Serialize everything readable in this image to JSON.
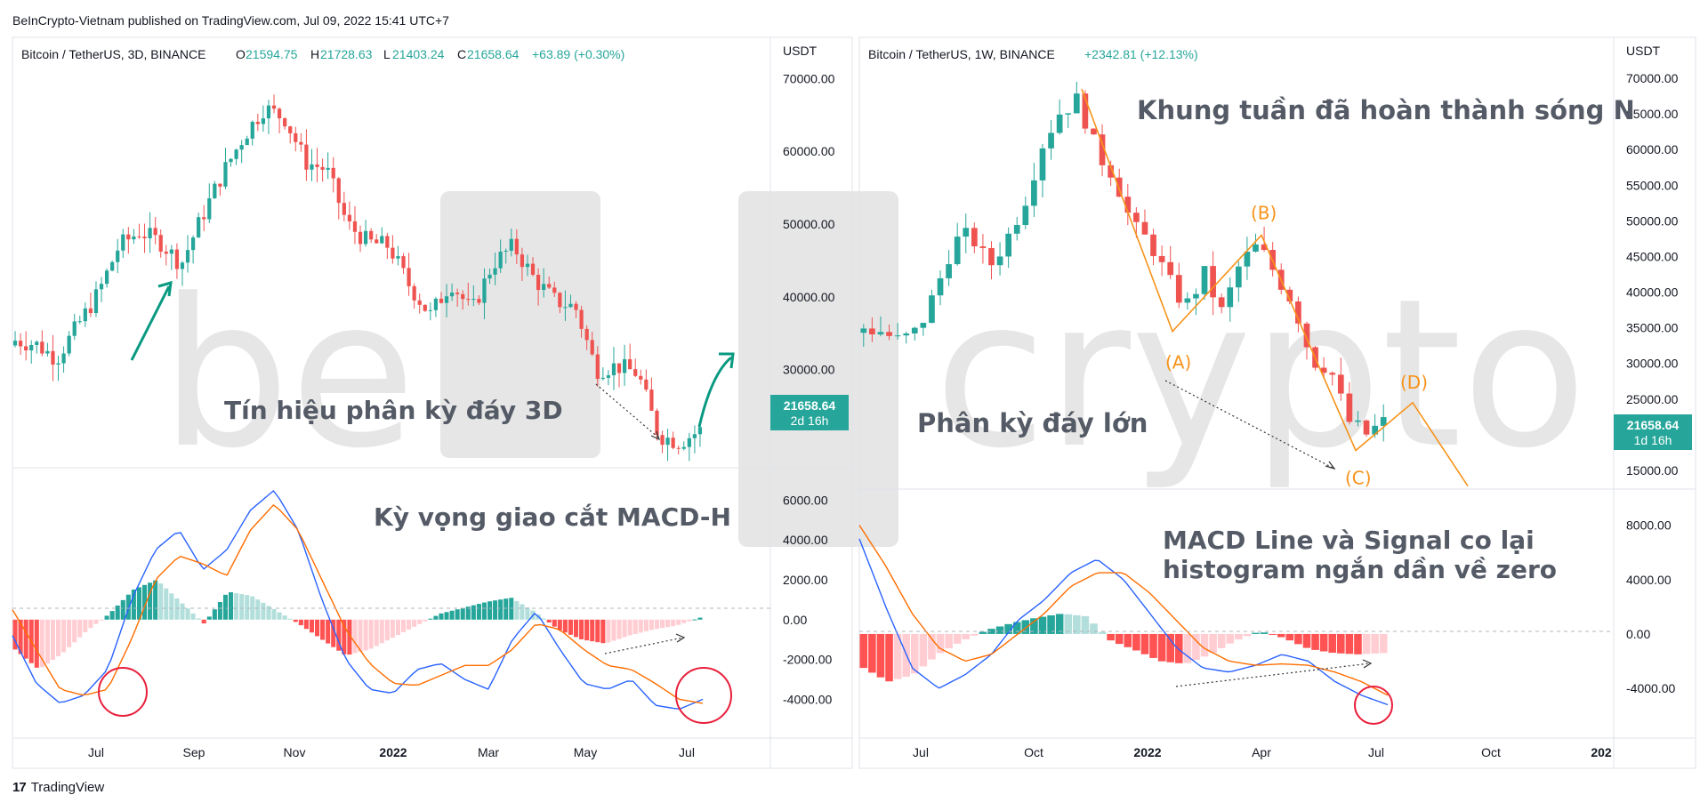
{
  "header": {
    "published": "BeInCrypto-Vietnam published on TradingView.com, Jul 09, 2022 15:41 UTC+7",
    "footer_brand": "TradingView",
    "footer_logo": "17"
  },
  "colors": {
    "up": "#26a69a",
    "down": "#ef5350",
    "hist_up_strong": "#26a69a",
    "hist_up_weak": "#b2dfdb",
    "hist_down_strong": "#ff5252",
    "hist_down_weak": "#ffcdd2",
    "macd_line": "#2962ff",
    "signal_line": "#ff6d00",
    "wave": "#f7931a",
    "annotation_green": "#089981",
    "circle": "#e91e3a",
    "price_label_bg": "#26a69a",
    "watermark": "#e8e8e8"
  },
  "watermark": {
    "left": "be",
    "right": "crypto"
  },
  "left_chart": {
    "title": "Bitcoin / TetherUS, 3D, BINANCE",
    "ohlc": {
      "o_label": "O",
      "o": "21594.75",
      "h_label": "H",
      "h": "21728.63",
      "l_label": "L",
      "l": "21403.24",
      "c_label": "C",
      "c": "21658.64",
      "change": "+63.89 (+0.30%)"
    },
    "currency": "USDT",
    "price_ticks": [
      "70000.00",
      "60000.00",
      "50000.00",
      "40000.00",
      "30000.00"
    ],
    "last_price": "21658.64",
    "countdown": "2d 16h",
    "macd_ticks": [
      "6000.00",
      "4000.00",
      "2000.00",
      "0.00",
      "-2000.00",
      "-4000.00"
    ],
    "time_labels": [
      "Jul",
      "Sep",
      "Nov",
      "2022",
      "Mar",
      "May",
      "Jul"
    ],
    "notes": {
      "price_note": "Tín hiệu phân kỳ đáy 3D",
      "macd_note": "Kỳ vọng giao cắt MACD-H"
    }
  },
  "right_chart": {
    "title": "Bitcoin / TetherUS, 1W, BINANCE",
    "change": "+2342.81 (+12.13%)",
    "currency": "USDT",
    "price_ticks": [
      "70000.00",
      "65000.00",
      "60000.00",
      "55000.00",
      "50000.00",
      "45000.00",
      "40000.00",
      "35000.00",
      "30000.00",
      "25000.00",
      "15000.00"
    ],
    "last_price": "21658.64",
    "countdown": "1d 16h",
    "macd_ticks": [
      "8000.00",
      "4000.00",
      "0.00",
      "-4000.00"
    ],
    "time_labels": [
      "Jul",
      "Oct",
      "2022",
      "Apr",
      "Jul",
      "Oct",
      "202"
    ],
    "wave_labels": [
      "(A)",
      "(B)",
      "(C)",
      "(D)"
    ],
    "notes": {
      "title_note": "Khung tuần đã hoàn thành sóng N",
      "price_note": "Phân kỳ đáy lớn",
      "macd_note_1": "MACD Line và Signal co lại",
      "macd_note_2": "histogram ngắn dần về zero"
    }
  },
  "chart_data": [
    {
      "type": "candlestick",
      "title": "Bitcoin / TetherUS, 3D, BINANCE",
      "period": "Jun 2021 – Jul 2022",
      "x": [
        "Jul",
        "Sep",
        "Nov",
        "2022",
        "Mar",
        "May",
        "Jul"
      ],
      "close_path": [
        34000,
        33500,
        31500,
        36000,
        40500,
        47000,
        49000,
        47500,
        44500,
        51000,
        57000,
        62000,
        66000,
        64500,
        58500,
        57500,
        50000,
        47500,
        47000,
        41500,
        37500,
        42000,
        38000,
        44500,
        47000,
        42500,
        39500,
        38500,
        30000,
        30500,
        29500,
        21000,
        20000,
        21658.64
      ],
      "ylim": [
        17000,
        72000
      ],
      "macd": {
        "ylim": [
          -5500,
          7000
        ],
        "macd_line": [
          -800,
          -3200,
          -4200,
          -3800,
          -2500,
          1000,
          3500,
          4500,
          2500,
          3500,
          5500,
          6500,
          4500,
          1000,
          -2000,
          -3500,
          -3700,
          -2500,
          -2200,
          -3000,
          -3500,
          -1000,
          400,
          -1500,
          -3200,
          -3500,
          -3000,
          -4300,
          -4500,
          -4000
        ],
        "signal_line": [
          500,
          -1500,
          -3500,
          -3800,
          -3500,
          -1000,
          2000,
          3200,
          2800,
          2200,
          4500,
          5800,
          4500,
          2000,
          -500,
          -2200,
          -3200,
          -3300,
          -2800,
          -2300,
          -2300,
          -1500,
          -200,
          -500,
          -1500,
          -2300,
          -2500,
          -3200,
          -4000,
          -4200
        ],
        "histogram": [
          -1500,
          -2500,
          -1700,
          -600,
          300,
          1500,
          2000,
          900,
          -200,
          1400,
          1200,
          500,
          -200,
          -1000,
          -1800,
          -1500,
          -900,
          -300,
          300,
          600,
          900,
          1100,
          400,
          -500,
          -1000,
          -1200,
          -800,
          -500,
          -300,
          100
        ]
      }
    },
    {
      "type": "candlestick",
      "title": "Bitcoin / TetherUS, 1W, BINANCE",
      "period": "May 2021 – Jul 2022",
      "x": [
        "Jul",
        "Oct",
        "2022",
        "Apr",
        "Jul",
        "Oct",
        "202"
      ],
      "close_path": [
        35000,
        34500,
        33000,
        34500,
        40000,
        47000,
        48000,
        43500,
        47500,
        53000,
        61000,
        65500,
        67000,
        59500,
        56500,
        49000,
        47000,
        41500,
        38000,
        42500,
        37000,
        44000,
        46500,
        42500,
        38500,
        30500,
        29500,
        22000,
        20000,
        21658.64
      ],
      "ylim": [
        13000,
        72000
      ],
      "waves": {
        "A": 34500,
        "B": 48000,
        "C": 17800,
        "D": 24500
      },
      "macd": {
        "ylim": [
          -7000,
          10000
        ],
        "macd_line": [
          7000,
          2000,
          -2500,
          -4000,
          -3000,
          -1500,
          1000,
          2500,
          4500,
          5500,
          4000,
          1500,
          -1000,
          -2500,
          -2800,
          -2300,
          -1500,
          -2000,
          -3500,
          -4500,
          -5200
        ],
        "signal_line": [
          8000,
          5000,
          1500,
          -1000,
          -2000,
          -1500,
          0,
          1500,
          3500,
          4500,
          4500,
          3000,
          1000,
          -1000,
          -2000,
          -2300,
          -2200,
          -2300,
          -2800,
          -3500,
          -4500
        ],
        "histogram": [
          -2500,
          -3500,
          -3000,
          -1500,
          -500,
          300,
          800,
          1200,
          1500,
          1300,
          -500,
          -1200,
          -2000,
          -2200,
          -1500,
          -500,
          200,
          -300,
          -1100,
          -1400,
          -1500,
          -1400
        ]
      }
    }
  ]
}
